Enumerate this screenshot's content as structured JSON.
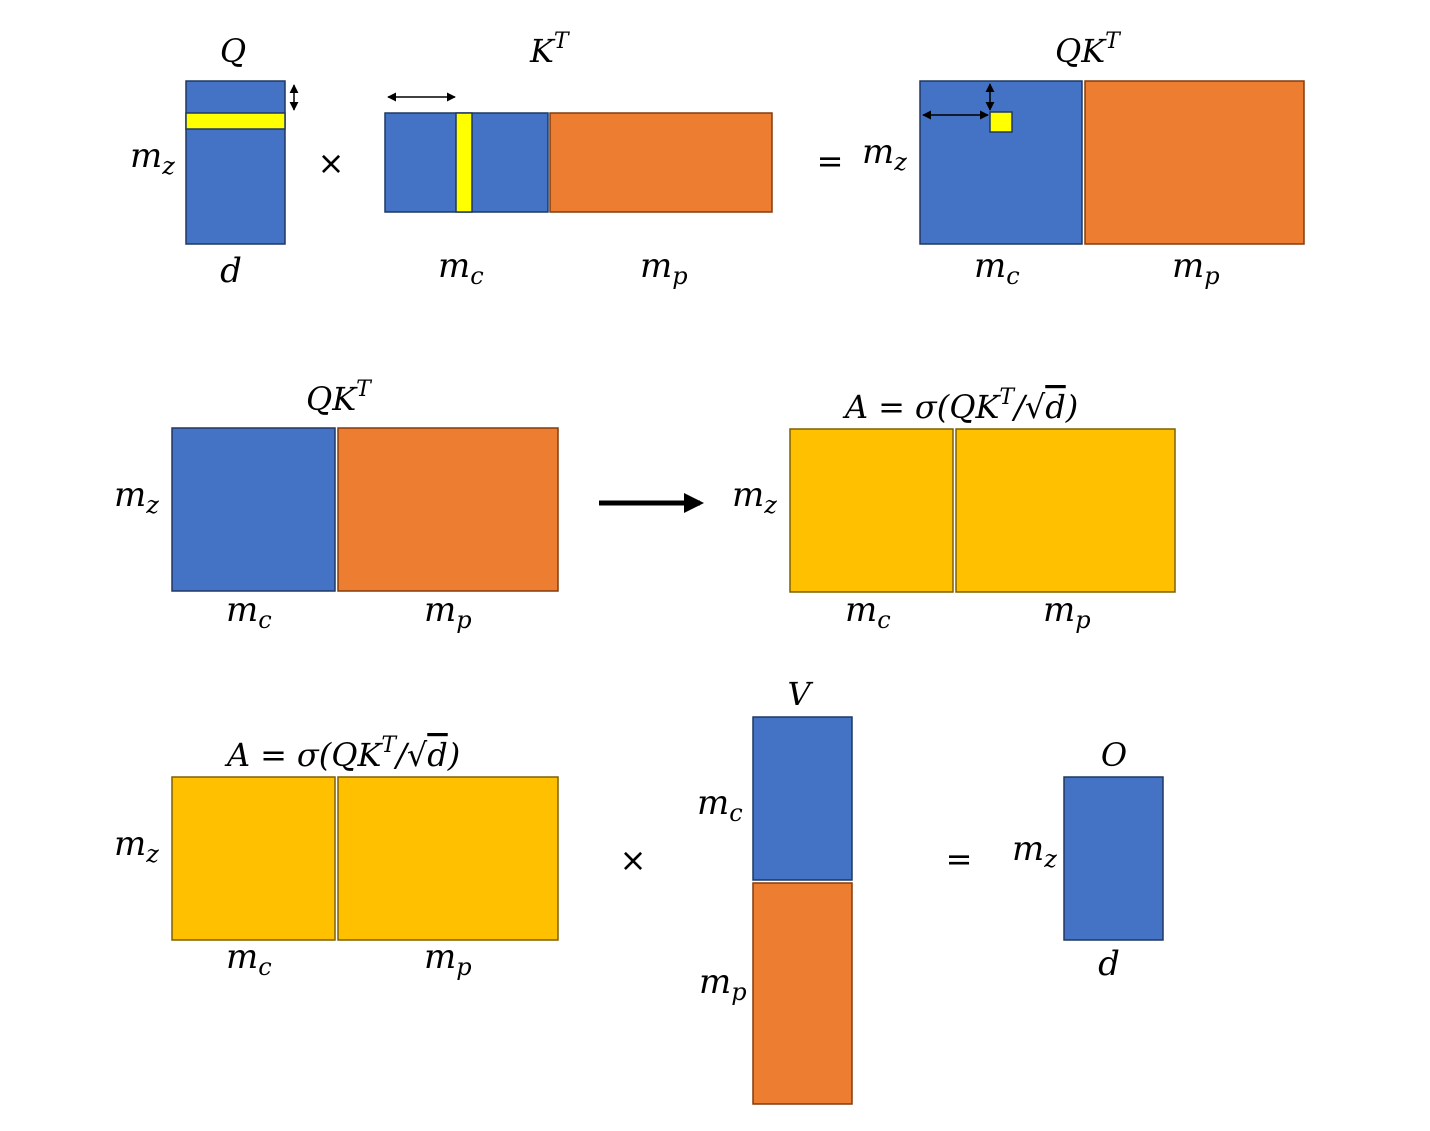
{
  "colors": {
    "blue": "#4472C4",
    "orange": "#ED7D31",
    "gold": "#FFC000",
    "yellow": "#FFFF00",
    "outline": "#1F3864",
    "orange_outline": "#843C0C",
    "gold_outline": "#7F6000",
    "arrow": "#000000"
  },
  "labels": {
    "Q": "Q",
    "K": "K",
    "V": "V",
    "O": "O",
    "A": "A",
    "T": "T",
    "m": "m",
    "z": "z",
    "c": "c",
    "p": "p",
    "d": "d",
    "times": "×",
    "equals": "=",
    "sigma": "σ",
    "open_paren": "(",
    "close_paren": ")",
    "slash": "/",
    "sqrt": "√"
  }
}
